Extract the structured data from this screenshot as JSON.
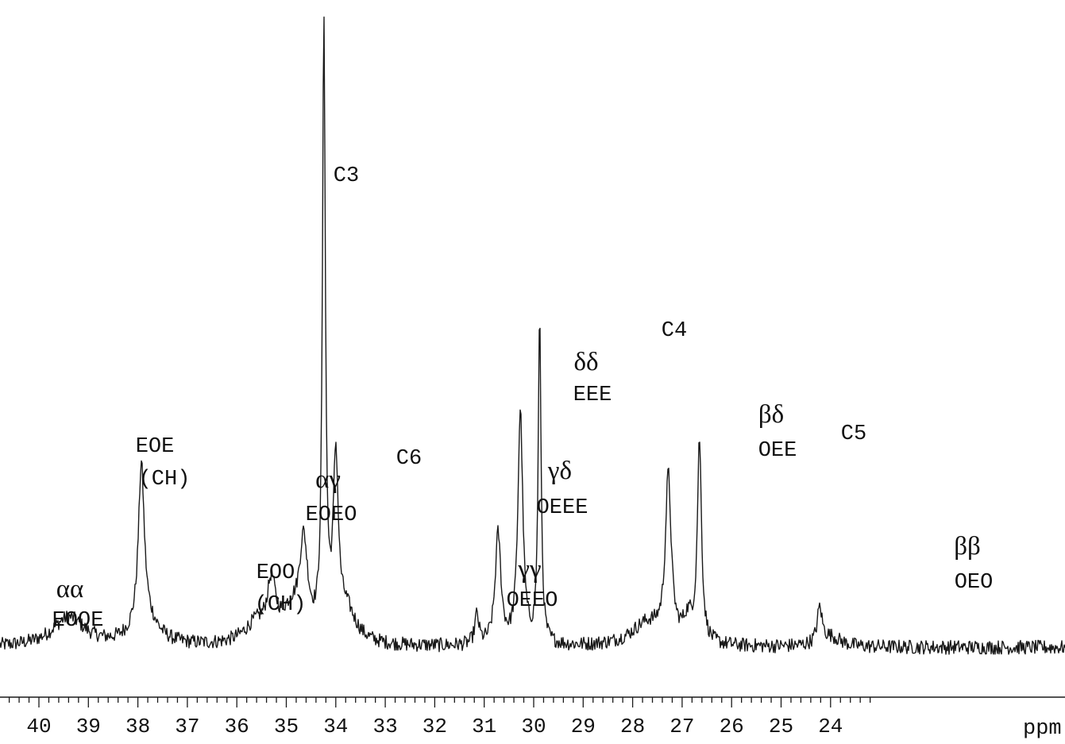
{
  "chart_data": {
    "type": "line",
    "xlabel": "ppm",
    "x_reversed": true,
    "xlim": [
      40.7,
      23.2
    ],
    "ylim": [
      0,
      100
    ],
    "grid": false,
    "x_ticks": [
      "40",
      "39",
      "38",
      "37",
      "36",
      "35",
      "34",
      "33",
      "32",
      "31",
      "30",
      "29",
      "28",
      "27",
      "26",
      "25",
      "24"
    ],
    "baseline": 3.5,
    "peaks": [
      {
        "ppm": 39.4,
        "height": 4.5,
        "width": 0.4
      },
      {
        "ppm": 37.93,
        "height": 24.5,
        "width": 0.07
      },
      {
        "ppm": 37.85,
        "height": 4.0,
        "width": 0.3
      },
      {
        "ppm": 35.3,
        "height": 8.0,
        "width": 0.1
      },
      {
        "ppm": 35.6,
        "height": 3.0,
        "width": 0.3
      },
      {
        "ppm": 34.65,
        "height": 14.0,
        "width": 0.1
      },
      {
        "ppm": 34.9,
        "height": 4.5,
        "width": 0.25
      },
      {
        "ppm": 34.24,
        "height": 94.0,
        "width": 0.035
      },
      {
        "ppm": 34.0,
        "height": 26.0,
        "width": 0.06
      },
      {
        "ppm": 33.8,
        "height": 5.0,
        "width": 0.25
      },
      {
        "ppm": 31.15,
        "height": 4.5,
        "width": 0.05
      },
      {
        "ppm": 30.72,
        "height": 17.0,
        "width": 0.07
      },
      {
        "ppm": 30.27,
        "height": 36.0,
        "width": 0.06
      },
      {
        "ppm": 29.88,
        "height": 50.0,
        "width": 0.035
      },
      {
        "ppm": 27.7,
        "height": 3.5,
        "width": 0.4
      },
      {
        "ppm": 27.28,
        "height": 25.0,
        "width": 0.07
      },
      {
        "ppm": 26.88,
        "height": 3.5,
        "width": 0.12
      },
      {
        "ppm": 26.65,
        "height": 31.0,
        "width": 0.05
      },
      {
        "ppm": 24.22,
        "height": 5.5,
        "width": 0.06
      },
      {
        "ppm": 24.0,
        "height": 1.5,
        "width": 0.25
      }
    ],
    "annotations": [
      {
        "greek": "αα",
        "label": "EOOE",
        "ppm": 39.4
      },
      {
        "greek": "",
        "label": "EOE",
        "sub": "(CH)",
        "ppm": 37.93
      },
      {
        "greek": "",
        "label": "EOO",
        "sub": "(CH)",
        "ppm": 35.3
      },
      {
        "greek": "αγ",
        "label": "EOEO",
        "ppm": 34.65
      },
      {
        "greek": "",
        "label": "C3",
        "ppm": 34.24
      },
      {
        "greek": "",
        "label": "C6",
        "ppm": 34.0
      },
      {
        "greek": "γγ",
        "label": "OEEO",
        "ppm": 31.15
      },
      {
        "greek": "γδ",
        "label": "OEEE",
        "ppm": 30.72
      },
      {
        "greek": "δδ",
        "label": "EEE",
        "ppm": 30.27
      },
      {
        "greek": "",
        "label": "C4",
        "ppm": 29.88
      },
      {
        "greek": "βδ",
        "label": "OEE",
        "ppm": 27.28
      },
      {
        "greek": "",
        "label": "C5",
        "ppm": 26.65
      },
      {
        "greek": "ββ",
        "label": "OEO",
        "ppm": 24.22
      }
    ]
  }
}
